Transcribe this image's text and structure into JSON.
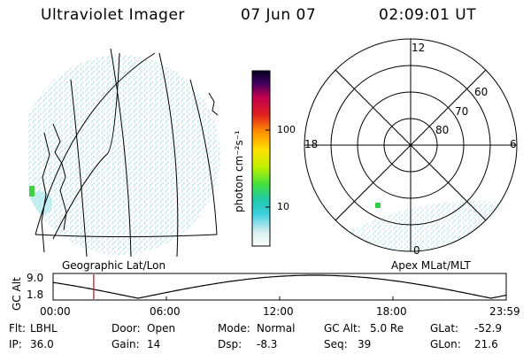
{
  "header": {
    "instrument": "Ultraviolet Imager",
    "date": "07 Jun 07",
    "time": "02:09:01 UT"
  },
  "colorbar": {
    "label": "photon cm⁻²s⁻¹",
    "ticks": [
      "100",
      "10"
    ]
  },
  "polar_plot": {
    "mlt_labels": {
      "top": "12",
      "left": "18",
      "right": "6",
      "bottom": "0"
    },
    "lat_labels": [
      "60",
      "70",
      "80"
    ],
    "caption": "Apex MLat/MLT"
  },
  "geo_map": {
    "caption": "Geographic Lat/Lon"
  },
  "altitude_plot": {
    "axis_label": "GC Alt",
    "y_ticks": [
      "9.0",
      "1.8"
    ],
    "x_ticks": [
      "00:00",
      "06:00",
      "12:00",
      "18:00",
      "23:59"
    ],
    "current_time_marker_hours": 2.15,
    "marker_color": "#dd0000"
  },
  "info": {
    "flt": {
      "label": "Flt:",
      "value": "LBHL"
    },
    "ip": {
      "label": "IP:",
      "value": "36.0"
    },
    "door": {
      "label": "Door:",
      "value": "Open"
    },
    "gain": {
      "label": "Gain:",
      "value": "14"
    },
    "mode": {
      "label": "Mode:",
      "value": "Normal"
    },
    "dsp": {
      "label": "Dsp:",
      "value": "-8.3"
    },
    "gcalt": {
      "label": "GC Alt:",
      "value": "5.0 Re"
    },
    "seq": {
      "label": "Seq:",
      "value": "39"
    },
    "glat": {
      "label": "GLat:",
      "value": "-52.9"
    },
    "glon": {
      "label": "GLon:",
      "value": "21.6"
    }
  }
}
